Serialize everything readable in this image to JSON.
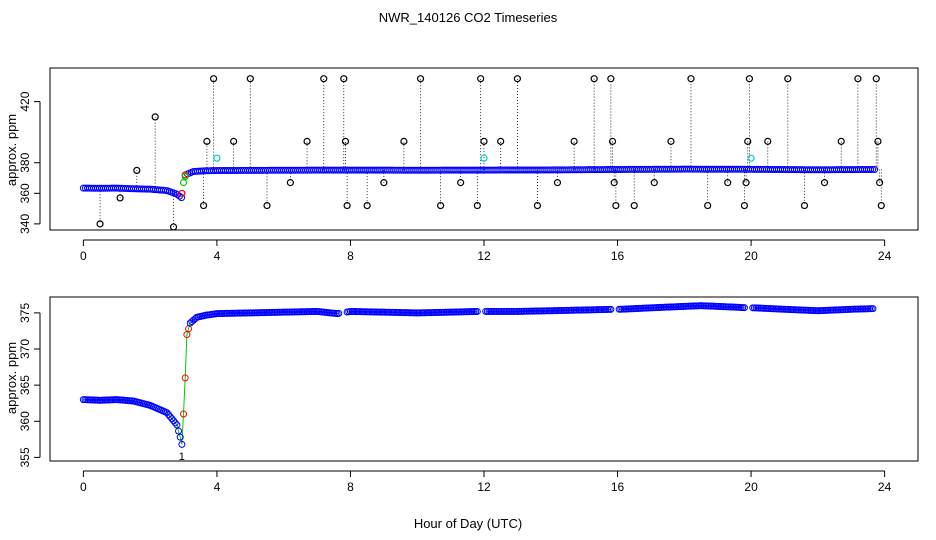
{
  "figure": {
    "title": "NWR_140126  CO2 Timeseries",
    "xlabel": "Hour of Day (UTC)"
  },
  "chart_data": [
    {
      "type": "scatter",
      "title": "NWR_140126  CO2 Timeseries",
      "xlabel": "",
      "ylabel": "approx. ppm",
      "xlim": [
        -1.0,
        25.0
      ],
      "ylim": [
        336,
        442
      ],
      "xticks": [
        0,
        4,
        8,
        12,
        16,
        20,
        24
      ],
      "yticks": [
        340,
        360,
        380,
        420
      ],
      "grid": false,
      "series_colors": {
        "raw": "#000000",
        "red": "#ff0000",
        "blue": "#0000ff",
        "green": "#00cc00",
        "cyan": "#00cccc"
      },
      "baseline": [
        {
          "x": 0.0,
          "y": 363.4
        },
        {
          "x": 0.5,
          "y": 363.3
        },
        {
          "x": 1.0,
          "y": 363.4
        },
        {
          "x": 1.5,
          "y": 363.0
        },
        {
          "x": 2.0,
          "y": 362.7
        },
        {
          "x": 2.5,
          "y": 361.8
        },
        {
          "x": 2.8,
          "y": 359.5
        },
        {
          "x": 2.95,
          "y": 357.0
        },
        {
          "x": 3.05,
          "y": 362.0
        },
        {
          "x": 3.1,
          "y": 372.5
        },
        {
          "x": 3.3,
          "y": 374.3
        },
        {
          "x": 3.6,
          "y": 374.7
        },
        {
          "x": 4.0,
          "y": 374.9
        },
        {
          "x": 6.0,
          "y": 375.1
        },
        {
          "x": 8.0,
          "y": 375.2
        },
        {
          "x": 10.0,
          "y": 375.1
        },
        {
          "x": 12.0,
          "y": 375.2
        },
        {
          "x": 14.0,
          "y": 375.3
        },
        {
          "x": 16.0,
          "y": 375.6
        },
        {
          "x": 18.0,
          "y": 375.8
        },
        {
          "x": 20.0,
          "y": 375.7
        },
        {
          "x": 22.0,
          "y": 375.4
        },
        {
          "x": 23.7,
          "y": 375.6
        }
      ],
      "spikes": [
        {
          "x": 0.5,
          "y": 340
        },
        {
          "x": 1.1,
          "y": 357
        },
        {
          "x": 1.6,
          "y": 375
        },
        {
          "x": 2.15,
          "y": 410
        },
        {
          "x": 2.7,
          "y": 338
        },
        {
          "x": 3.6,
          "y": 352
        },
        {
          "x": 3.7,
          "y": 394
        },
        {
          "x": 3.9,
          "y": 435
        },
        {
          "x": 4.5,
          "y": 394
        },
        {
          "x": 5.0,
          "y": 435
        },
        {
          "x": 5.5,
          "y": 352
        },
        {
          "x": 6.2,
          "y": 367
        },
        {
          "x": 6.7,
          "y": 394
        },
        {
          "x": 7.2,
          "y": 435
        },
        {
          "x": 7.8,
          "y": 435
        },
        {
          "x": 7.85,
          "y": 394
        },
        {
          "x": 7.9,
          "y": 352
        },
        {
          "x": 8.5,
          "y": 352
        },
        {
          "x": 9.0,
          "y": 367
        },
        {
          "x": 9.6,
          "y": 394
        },
        {
          "x": 10.1,
          "y": 435
        },
        {
          "x": 10.7,
          "y": 352
        },
        {
          "x": 11.3,
          "y": 367
        },
        {
          "x": 11.8,
          "y": 352
        },
        {
          "x": 11.9,
          "y": 435
        },
        {
          "x": 12.0,
          "y": 394
        },
        {
          "x": 12.5,
          "y": 394
        },
        {
          "x": 13.0,
          "y": 435
        },
        {
          "x": 13.6,
          "y": 352
        },
        {
          "x": 14.2,
          "y": 367
        },
        {
          "x": 14.7,
          "y": 394
        },
        {
          "x": 15.3,
          "y": 435
        },
        {
          "x": 15.8,
          "y": 435
        },
        {
          "x": 15.85,
          "y": 394
        },
        {
          "x": 15.9,
          "y": 367
        },
        {
          "x": 15.95,
          "y": 352
        },
        {
          "x": 16.5,
          "y": 352
        },
        {
          "x": 17.1,
          "y": 367
        },
        {
          "x": 17.6,
          "y": 394
        },
        {
          "x": 18.2,
          "y": 435
        },
        {
          "x": 18.7,
          "y": 352
        },
        {
          "x": 19.3,
          "y": 367
        },
        {
          "x": 19.8,
          "y": 352
        },
        {
          "x": 19.85,
          "y": 367
        },
        {
          "x": 19.9,
          "y": 394
        },
        {
          "x": 19.95,
          "y": 435
        },
        {
          "x": 20.5,
          "y": 394
        },
        {
          "x": 21.1,
          "y": 435
        },
        {
          "x": 21.6,
          "y": 352
        },
        {
          "x": 22.2,
          "y": 367
        },
        {
          "x": 22.7,
          "y": 394
        },
        {
          "x": 23.2,
          "y": 435
        },
        {
          "x": 23.75,
          "y": 435
        },
        {
          "x": 23.8,
          "y": 394
        },
        {
          "x": 23.85,
          "y": 367
        },
        {
          "x": 23.9,
          "y": 352
        }
      ],
      "cyan_points": [
        {
          "x": 4.0,
          "y": 383
        },
        {
          "x": 12.0,
          "y": 383
        },
        {
          "x": 20.0,
          "y": 383
        }
      ],
      "green_points": [
        {
          "x": 3.0,
          "y": 367
        },
        {
          "x": 3.05,
          "y": 371
        }
      ],
      "red_points": [
        {
          "x": 2.95,
          "y": 360
        },
        {
          "x": 3.05,
          "y": 372
        }
      ]
    },
    {
      "type": "scatter",
      "title": "",
      "xlabel": "Hour of Day (UTC)",
      "ylabel": "approx. ppm",
      "xlim": [
        -1.0,
        25.0
      ],
      "ylim": [
        354.5,
        377.2
      ],
      "xticks": [
        0,
        4,
        8,
        12,
        16,
        20,
        24
      ],
      "yticks": [
        355,
        360,
        365,
        370,
        375
      ],
      "grid": false,
      "annotation": "1",
      "annotation_point": {
        "x": 2.95,
        "y": 355.2
      },
      "series_colors": {
        "raw": "#000000",
        "red": "#ff0000",
        "blue": "#0000ff",
        "green": "#00cc00",
        "cyan": "#00cccc"
      },
      "baseline": [
        {
          "x": 0.0,
          "y": 363.0
        },
        {
          "x": 0.5,
          "y": 362.9
        },
        {
          "x": 1.0,
          "y": 363.0
        },
        {
          "x": 1.5,
          "y": 362.8
        },
        {
          "x": 2.0,
          "y": 362.2
        },
        {
          "x": 2.5,
          "y": 361.2
        },
        {
          "x": 2.8,
          "y": 359.5
        },
        {
          "x": 2.9,
          "y": 357.8
        },
        {
          "x": 2.95,
          "y": 356.8
        },
        {
          "x": 3.0,
          "y": 361.0
        },
        {
          "x": 3.05,
          "y": 366.0
        },
        {
          "x": 3.1,
          "y": 372.0
        },
        {
          "x": 3.2,
          "y": 373.6
        },
        {
          "x": 3.4,
          "y": 374.4
        },
        {
          "x": 3.7,
          "y": 374.7
        },
        {
          "x": 4.0,
          "y": 374.9
        },
        {
          "x": 5.0,
          "y": 375.0
        },
        {
          "x": 6.0,
          "y": 375.1
        },
        {
          "x": 7.0,
          "y": 375.2
        },
        {
          "x": 7.6,
          "y": 374.9
        },
        {
          "x": 8.0,
          "y": 375.2
        },
        {
          "x": 9.0,
          "y": 375.1
        },
        {
          "x": 10.0,
          "y": 375.0
        },
        {
          "x": 11.0,
          "y": 375.1
        },
        {
          "x": 11.8,
          "y": 375.2
        },
        {
          "x": 12.0,
          "y": 375.2
        },
        {
          "x": 13.0,
          "y": 375.2
        },
        {
          "x": 14.0,
          "y": 375.3
        },
        {
          "x": 15.0,
          "y": 375.4
        },
        {
          "x": 15.9,
          "y": 375.5
        },
        {
          "x": 16.1,
          "y": 375.5
        },
        {
          "x": 17.0,
          "y": 375.7
        },
        {
          "x": 18.0,
          "y": 375.9
        },
        {
          "x": 18.5,
          "y": 376.0
        },
        {
          "x": 19.5,
          "y": 375.8
        },
        {
          "x": 19.9,
          "y": 375.7
        },
        {
          "x": 20.1,
          "y": 375.7
        },
        {
          "x": 21.0,
          "y": 375.5
        },
        {
          "x": 22.0,
          "y": 375.3
        },
        {
          "x": 23.0,
          "y": 375.5
        },
        {
          "x": 23.7,
          "y": 375.6
        }
      ],
      "gaps": [
        [
          7.65,
          7.85
        ],
        [
          11.85,
          12.05
        ],
        [
          15.85,
          16.05
        ],
        [
          19.85,
          20.05
        ]
      ]
    }
  ]
}
